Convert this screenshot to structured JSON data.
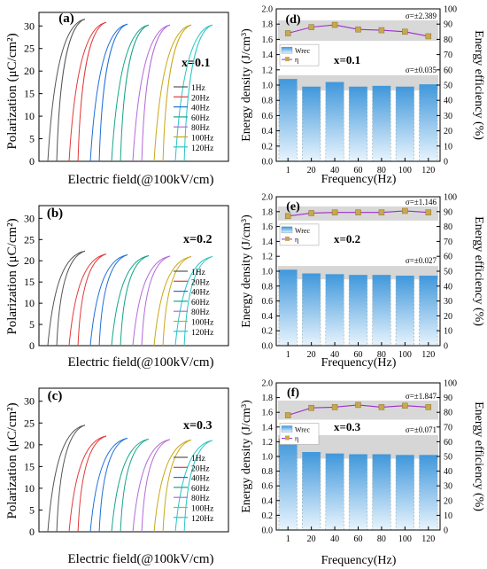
{
  "colors": {
    "frequencies": [
      "#555555",
      "#e03a3a",
      "#1f6fd8",
      "#17a589",
      "#b36ad8",
      "#c9a818",
      "#2ac5c5"
    ],
    "bar_top": "#3f97db",
    "bar_bottom": "#e8f4fd",
    "bar_band": "#c8c8c8",
    "efficiency_line": "#9b30c8",
    "efficiency_marker": "#c8a84c"
  },
  "chart_data": [
    {
      "id": "a",
      "type": "line",
      "panel_label": "(a)",
      "composition": "x=0.1",
      "xlabel": "Electric field(@100kV/cm)",
      "ylabel": "Polarization  (μC/cm²)",
      "ylim": [
        0,
        33
      ],
      "yticks": [
        0,
        5,
        10,
        15,
        20,
        25,
        30
      ],
      "legend": [
        "1Hz",
        "20Hz",
        "40Hz",
        "60Hz",
        "80Hz",
        "100Hz",
        "120Hz"
      ],
      "series": [
        {
          "name": "1Hz",
          "pmax": 31.5
        },
        {
          "name": "20Hz",
          "pmax": 30.8
        },
        {
          "name": "40Hz",
          "pmax": 30.4
        },
        {
          "name": "60Hz",
          "pmax": 30.2
        },
        {
          "name": "80Hz",
          "pmax": 30.2
        },
        {
          "name": "100Hz",
          "pmax": 30.2
        },
        {
          "name": "120Hz",
          "pmax": 30.2
        }
      ]
    },
    {
      "id": "b",
      "type": "line",
      "panel_label": "(b)",
      "composition": "x=0.2",
      "xlabel": "Electric field(@100kV/cm)",
      "ylabel": "Polarization  (μC/cm²)",
      "ylim": [
        0,
        33
      ],
      "yticks": [
        0,
        5,
        10,
        15,
        20,
        25,
        30
      ],
      "legend": [
        "1Hz",
        "20Hz",
        "40Hz",
        "60Hz",
        "80Hz",
        "100Hz",
        "120Hz"
      ],
      "series": [
        {
          "name": "1Hz",
          "pmax": 22.3
        },
        {
          "name": "20Hz",
          "pmax": 21.6
        },
        {
          "name": "40Hz",
          "pmax": 21.4
        },
        {
          "name": "60Hz",
          "pmax": 21.2
        },
        {
          "name": "80Hz",
          "pmax": 21.1
        },
        {
          "name": "100Hz",
          "pmax": 21.0
        },
        {
          "name": "120Hz",
          "pmax": 21.0
        }
      ]
    },
    {
      "id": "c",
      "type": "line",
      "panel_label": "(c)",
      "composition": "x=0.3",
      "xlabel": "Electric field(@100kV/cm)",
      "ylabel": "Polarization  (μC/cm²)",
      "ylim": [
        0,
        33
      ],
      "yticks": [
        0,
        5,
        10,
        15,
        20,
        25,
        30
      ],
      "legend": [
        "1Hz",
        "20Hz",
        "40Hz",
        "60Hz",
        "80Hz",
        "100Hz",
        "120Hz"
      ],
      "series": [
        {
          "name": "1Hz",
          "pmax": 24.5
        },
        {
          "name": "20Hz",
          "pmax": 22.0
        },
        {
          "name": "40Hz",
          "pmax": 21.5
        },
        {
          "name": "60Hz",
          "pmax": 21.3
        },
        {
          "name": "80Hz",
          "pmax": 21.2
        },
        {
          "name": "100Hz",
          "pmax": 21.1
        },
        {
          "name": "120Hz",
          "pmax": 21.0
        }
      ]
    },
    {
      "id": "d",
      "type": "bar",
      "panel_label": "(d)",
      "composition": "x=0.1",
      "xlabel": "Frequency(Hz)",
      "ylabel": "Energy density (J/cm³)",
      "y2label": "Energy efficiency (%)",
      "categories": [
        "1",
        "20",
        "40",
        "60",
        "80",
        "100",
        "120"
      ],
      "ylim": [
        0,
        2.0
      ],
      "yticks": [
        "0.0",
        "0.2",
        "0.4",
        "0.6",
        "0.8",
        "1.0",
        "1.2",
        "1.4",
        "1.6",
        "1.8",
        "2.0"
      ],
      "y2lim": [
        0,
        100
      ],
      "y2ticks": [
        "0",
        "10",
        "20",
        "30",
        "40",
        "50",
        "60",
        "70",
        "80",
        "90",
        "100"
      ],
      "legend": [
        "Wrec",
        "η"
      ],
      "sigma_efficiency": "σ=±2.389",
      "sigma_density": "σ=±0.035",
      "series": [
        {
          "name": "Wrec",
          "axis": "left",
          "values": [
            1.08,
            0.98,
            1.04,
            0.98,
            0.99,
            0.98,
            1.01
          ]
        },
        {
          "name": "η",
          "axis": "right",
          "values": [
            84.0,
            88.0,
            89.5,
            86.5,
            86.0,
            85.0,
            82.0
          ]
        }
      ]
    },
    {
      "id": "e",
      "type": "bar",
      "panel_label": "(e)",
      "composition": "x=0.2",
      "xlabel": "Frequency(Hz)",
      "ylabel": "Energy density (J/cm³)",
      "y2label": "Energy efficiency (%)",
      "categories": [
        "1",
        "20",
        "40",
        "60",
        "80",
        "100",
        "120"
      ],
      "ylim": [
        0,
        2.0
      ],
      "yticks": [
        "0.0",
        "0.2",
        "0.4",
        "0.6",
        "0.8",
        "1.0",
        "1.2",
        "1.4",
        "1.6",
        "1.8",
        "2.0"
      ],
      "y2lim": [
        0,
        100
      ],
      "y2ticks": [
        "0",
        "10",
        "20",
        "30",
        "40",
        "50",
        "60",
        "70",
        "80",
        "90",
        "100"
      ],
      "legend": [
        "Wrec",
        "η"
      ],
      "sigma_efficiency": "σ=±1.146",
      "sigma_density": "σ=±0.027",
      "series": [
        {
          "name": "Wrec",
          "axis": "left",
          "values": [
            1.02,
            0.97,
            0.96,
            0.95,
            0.95,
            0.94,
            0.94
          ]
        },
        {
          "name": "η",
          "axis": "right",
          "values": [
            87.0,
            89.0,
            89.5,
            89.5,
            89.5,
            90.5,
            89.5
          ]
        }
      ]
    },
    {
      "id": "f",
      "type": "bar",
      "panel_label": "(f)",
      "composition": "x=0.3",
      "xlabel": "Frequency(Hz)",
      "ylabel": "Energy density (J/cm³)",
      "y2label": "Energy efficiency (%)",
      "categories": [
        "1",
        "20",
        "40",
        "60",
        "80",
        "100",
        "120"
      ],
      "ylim": [
        0,
        2.0
      ],
      "yticks": [
        "0.0",
        "0.2",
        "0.4",
        "0.6",
        "0.8",
        "1.0",
        "1.2",
        "1.4",
        "1.6",
        "1.8",
        "2.0"
      ],
      "y2lim": [
        0,
        100
      ],
      "y2ticks": [
        "0",
        "10",
        "20",
        "30",
        "40",
        "50",
        "60",
        "70",
        "80",
        "90",
        "100"
      ],
      "legend": [
        "Wrec",
        "η"
      ],
      "sigma_efficiency": "σ=±1.847",
      "sigma_density": "σ=±0.071",
      "series": [
        {
          "name": "Wrec",
          "axis": "left",
          "values": [
            1.24,
            1.06,
            1.04,
            1.03,
            1.03,
            1.02,
            1.02
          ]
        },
        {
          "name": "η",
          "axis": "right",
          "values": [
            78.0,
            83.0,
            83.5,
            85.0,
            83.5,
            84.5,
            83.5
          ]
        }
      ]
    }
  ]
}
